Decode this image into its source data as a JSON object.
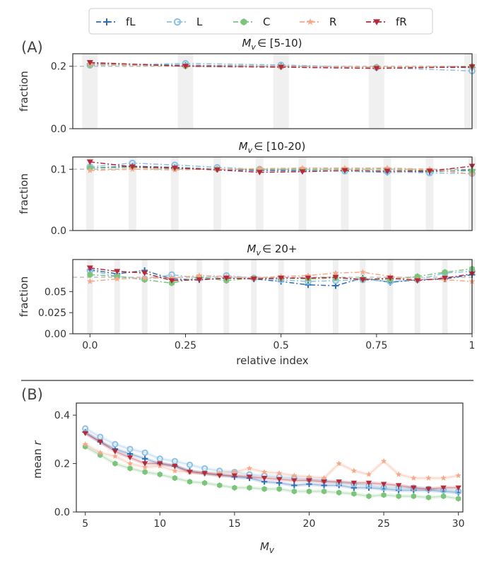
{
  "legend": [
    {
      "key": "fL",
      "label": "fL",
      "color": "#2f6db5",
      "marker": "plus"
    },
    {
      "key": "L",
      "label": "L",
      "color": "#8fc1e3",
      "marker": "circle"
    },
    {
      "key": "C",
      "label": "C",
      "color": "#7cc47c",
      "marker": "hexagon"
    },
    {
      "key": "R",
      "label": "R",
      "color": "#f4a98a",
      "marker": "star"
    },
    {
      "key": "fR",
      "label": "fR",
      "color": "#b52a3a",
      "marker": "triangle-down"
    }
  ],
  "panel_labels": {
    "a": "(A)",
    "b": "(B)"
  },
  "chart_data": [
    {
      "type": "line",
      "panel": "A1",
      "title": "$M_v \\in$ [5-10)",
      "title_prefix": "M",
      "title_sub": "v",
      "title_suffix": "∈ [5-10)",
      "ylabel": "fraction",
      "ylim": [
        0,
        0.24
      ],
      "yticks": [
        0.0,
        0.2
      ],
      "ytick_labels": [
        "0.0",
        "0.2"
      ],
      "reference_line": 0.2,
      "xlim": [
        -0.045,
        1.0
      ],
      "x": [
        0,
        0.25,
        0.5,
        0.75,
        1.0
      ],
      "series": [
        {
          "key": "fL",
          "values": [
            0.208,
            0.203,
            0.2,
            0.197,
            0.196
          ]
        },
        {
          "key": "L",
          "values": [
            0.203,
            0.209,
            0.204,
            0.196,
            0.185
          ]
        },
        {
          "key": "C",
          "values": [
            0.205,
            0.2,
            0.198,
            0.197,
            0.2
          ]
        },
        {
          "key": "R",
          "values": [
            0.206,
            0.201,
            0.199,
            0.197,
            0.199
          ]
        },
        {
          "key": "fR",
          "values": [
            0.212,
            0.2,
            0.197,
            0.193,
            0.198
          ]
        }
      ]
    },
    {
      "type": "line",
      "panel": "A2",
      "title": "$M_v \\in$ [10-20)",
      "title_prefix": "M",
      "title_sub": "v",
      "title_suffix": "∈ [10-20)",
      "ylabel": "fraction",
      "ylim": [
        0,
        0.12
      ],
      "yticks": [
        0.0,
        0.1
      ],
      "ytick_labels": [
        "0.0",
        "0.1"
      ],
      "reference_line": 0.1,
      "xlim": [
        -0.045,
        1.0
      ],
      "x": [
        0,
        0.111,
        0.222,
        0.333,
        0.444,
        0.556,
        0.667,
        0.778,
        0.889,
        1.0
      ],
      "series": [
        {
          "key": "fL",
          "values": [
            0.102,
            0.105,
            0.103,
            0.1,
            0.098,
            0.098,
            0.097,
            0.095,
            0.096,
            0.099
          ]
        },
        {
          "key": "L",
          "values": [
            0.104,
            0.11,
            0.107,
            0.103,
            0.1,
            0.099,
            0.097,
            0.096,
            0.094,
            0.093
          ]
        },
        {
          "key": "C",
          "values": [
            0.102,
            0.103,
            0.101,
            0.1,
            0.1,
            0.1,
            0.1,
            0.1,
            0.098,
            0.097
          ]
        },
        {
          "key": "R",
          "values": [
            0.098,
            0.1,
            0.099,
            0.1,
            0.101,
            0.102,
            0.102,
            0.102,
            0.1,
            0.092
          ]
        },
        {
          "key": "fR",
          "values": [
            0.112,
            0.104,
            0.102,
            0.099,
            0.095,
            0.096,
            0.098,
            0.097,
            0.097,
            0.105
          ]
        }
      ]
    },
    {
      "type": "line",
      "panel": "A3",
      "title": "$M_v \\in$ 20+",
      "title_prefix": "M",
      "title_sub": "v",
      "title_suffix": "∈ 20+",
      "ylabel": "fraction",
      "xlabel": "relative index",
      "ylim": [
        0,
        0.088
      ],
      "yticks": [
        0.0,
        0.025,
        0.05
      ],
      "ytick_labels": [
        "0.00",
        "0.025",
        "0.05"
      ],
      "xticks": [
        0,
        0.25,
        0.5,
        0.75,
        1.0
      ],
      "xtick_labels": [
        "0.0",
        "0.25",
        "0.5",
        "0.75",
        "1"
      ],
      "reference_line": 0.067,
      "xlim": [
        -0.045,
        1.0
      ],
      "x": [
        0,
        0.071,
        0.143,
        0.214,
        0.286,
        0.357,
        0.429,
        0.5,
        0.571,
        0.643,
        0.714,
        0.786,
        0.857,
        0.929,
        1.0
      ],
      "series": [
        {
          "key": "fL",
          "values": [
            0.076,
            0.071,
            0.075,
            0.065,
            0.064,
            0.066,
            0.065,
            0.062,
            0.058,
            0.057,
            0.066,
            0.061,
            0.064,
            0.065,
            0.07
          ]
        },
        {
          "key": "L",
          "values": [
            0.075,
            0.068,
            0.065,
            0.07,
            0.066,
            0.069,
            0.066,
            0.064,
            0.062,
            0.063,
            0.064,
            0.062,
            0.064,
            0.072,
            0.074
          ]
        },
        {
          "key": "C",
          "values": [
            0.07,
            0.068,
            0.064,
            0.06,
            0.067,
            0.063,
            0.066,
            0.066,
            0.065,
            0.066,
            0.065,
            0.064,
            0.068,
            0.073,
            0.077
          ]
        },
        {
          "key": "R",
          "values": [
            0.062,
            0.065,
            0.066,
            0.066,
            0.069,
            0.068,
            0.066,
            0.068,
            0.069,
            0.072,
            0.073,
            0.068,
            0.064,
            0.064,
            0.062
          ]
        },
        {
          "key": "fR",
          "values": [
            0.078,
            0.074,
            0.072,
            0.063,
            0.064,
            0.066,
            0.065,
            0.066,
            0.066,
            0.067,
            0.064,
            0.066,
            0.063,
            0.066,
            0.071
          ]
        }
      ]
    },
    {
      "type": "line",
      "panel": "B",
      "title": "",
      "ylabel": "mean r",
      "ylabel_prefix": "mean ",
      "ylabel_var": "r",
      "xlabel": "M_v",
      "xlabel_base": "M",
      "xlabel_sub": "v",
      "xlim": [
        4.4,
        30.3
      ],
      "ylim": [
        0.0,
        0.45
      ],
      "xticks": [
        5,
        10,
        15,
        20,
        25,
        30
      ],
      "xtick_labels": [
        "5",
        "10",
        "15",
        "20",
        "25",
        "30"
      ],
      "yticks": [
        0.0,
        0.2,
        0.4
      ],
      "ytick_labels": [
        "0.0",
        "0.2",
        "0.4"
      ],
      "x": [
        5,
        6,
        7,
        8,
        9,
        10,
        11,
        12,
        13,
        14,
        15,
        16,
        17,
        18,
        19,
        20,
        21,
        22,
        23,
        24,
        25,
        26,
        27,
        28,
        29,
        30
      ],
      "series": [
        {
          "key": "fL",
          "values": [
            0.33,
            0.29,
            0.26,
            0.24,
            0.22,
            0.2,
            0.19,
            0.17,
            0.16,
            0.155,
            0.145,
            0.14,
            0.125,
            0.12,
            0.11,
            0.115,
            0.11,
            0.11,
            0.1,
            0.1,
            0.095,
            0.09,
            0.09,
            0.09,
            0.085,
            0.08
          ]
        },
        {
          "key": "L",
          "values": [
            0.345,
            0.31,
            0.28,
            0.26,
            0.245,
            0.22,
            0.21,
            0.195,
            0.18,
            0.17,
            0.165,
            0.155,
            0.15,
            0.145,
            0.14,
            0.135,
            0.13,
            0.12,
            0.115,
            0.11,
            0.1,
            0.1,
            0.1,
            0.095,
            0.09,
            0.085
          ]
        },
        {
          "key": "C",
          "values": [
            0.27,
            0.235,
            0.2,
            0.18,
            0.165,
            0.155,
            0.14,
            0.125,
            0.12,
            0.11,
            0.1,
            0.1,
            0.095,
            0.095,
            0.085,
            0.085,
            0.085,
            0.08,
            0.075,
            0.065,
            0.07,
            0.065,
            0.065,
            0.06,
            0.065,
            0.055
          ]
        },
        {
          "key": "R",
          "values": [
            0.28,
            0.245,
            0.23,
            0.2,
            0.185,
            0.19,
            0.17,
            0.165,
            0.16,
            0.16,
            0.165,
            0.18,
            0.165,
            0.16,
            0.15,
            0.145,
            0.14,
            0.2,
            0.17,
            0.155,
            0.21,
            0.155,
            0.14,
            0.14,
            0.14,
            0.15
          ]
        },
        {
          "key": "fR",
          "values": [
            0.325,
            0.29,
            0.25,
            0.225,
            0.2,
            0.2,
            0.19,
            0.165,
            0.16,
            0.15,
            0.15,
            0.145,
            0.14,
            0.135,
            0.13,
            0.13,
            0.125,
            0.125,
            0.12,
            0.12,
            0.115,
            0.11,
            0.1,
            0.095,
            0.1,
            0.1
          ]
        }
      ]
    }
  ]
}
